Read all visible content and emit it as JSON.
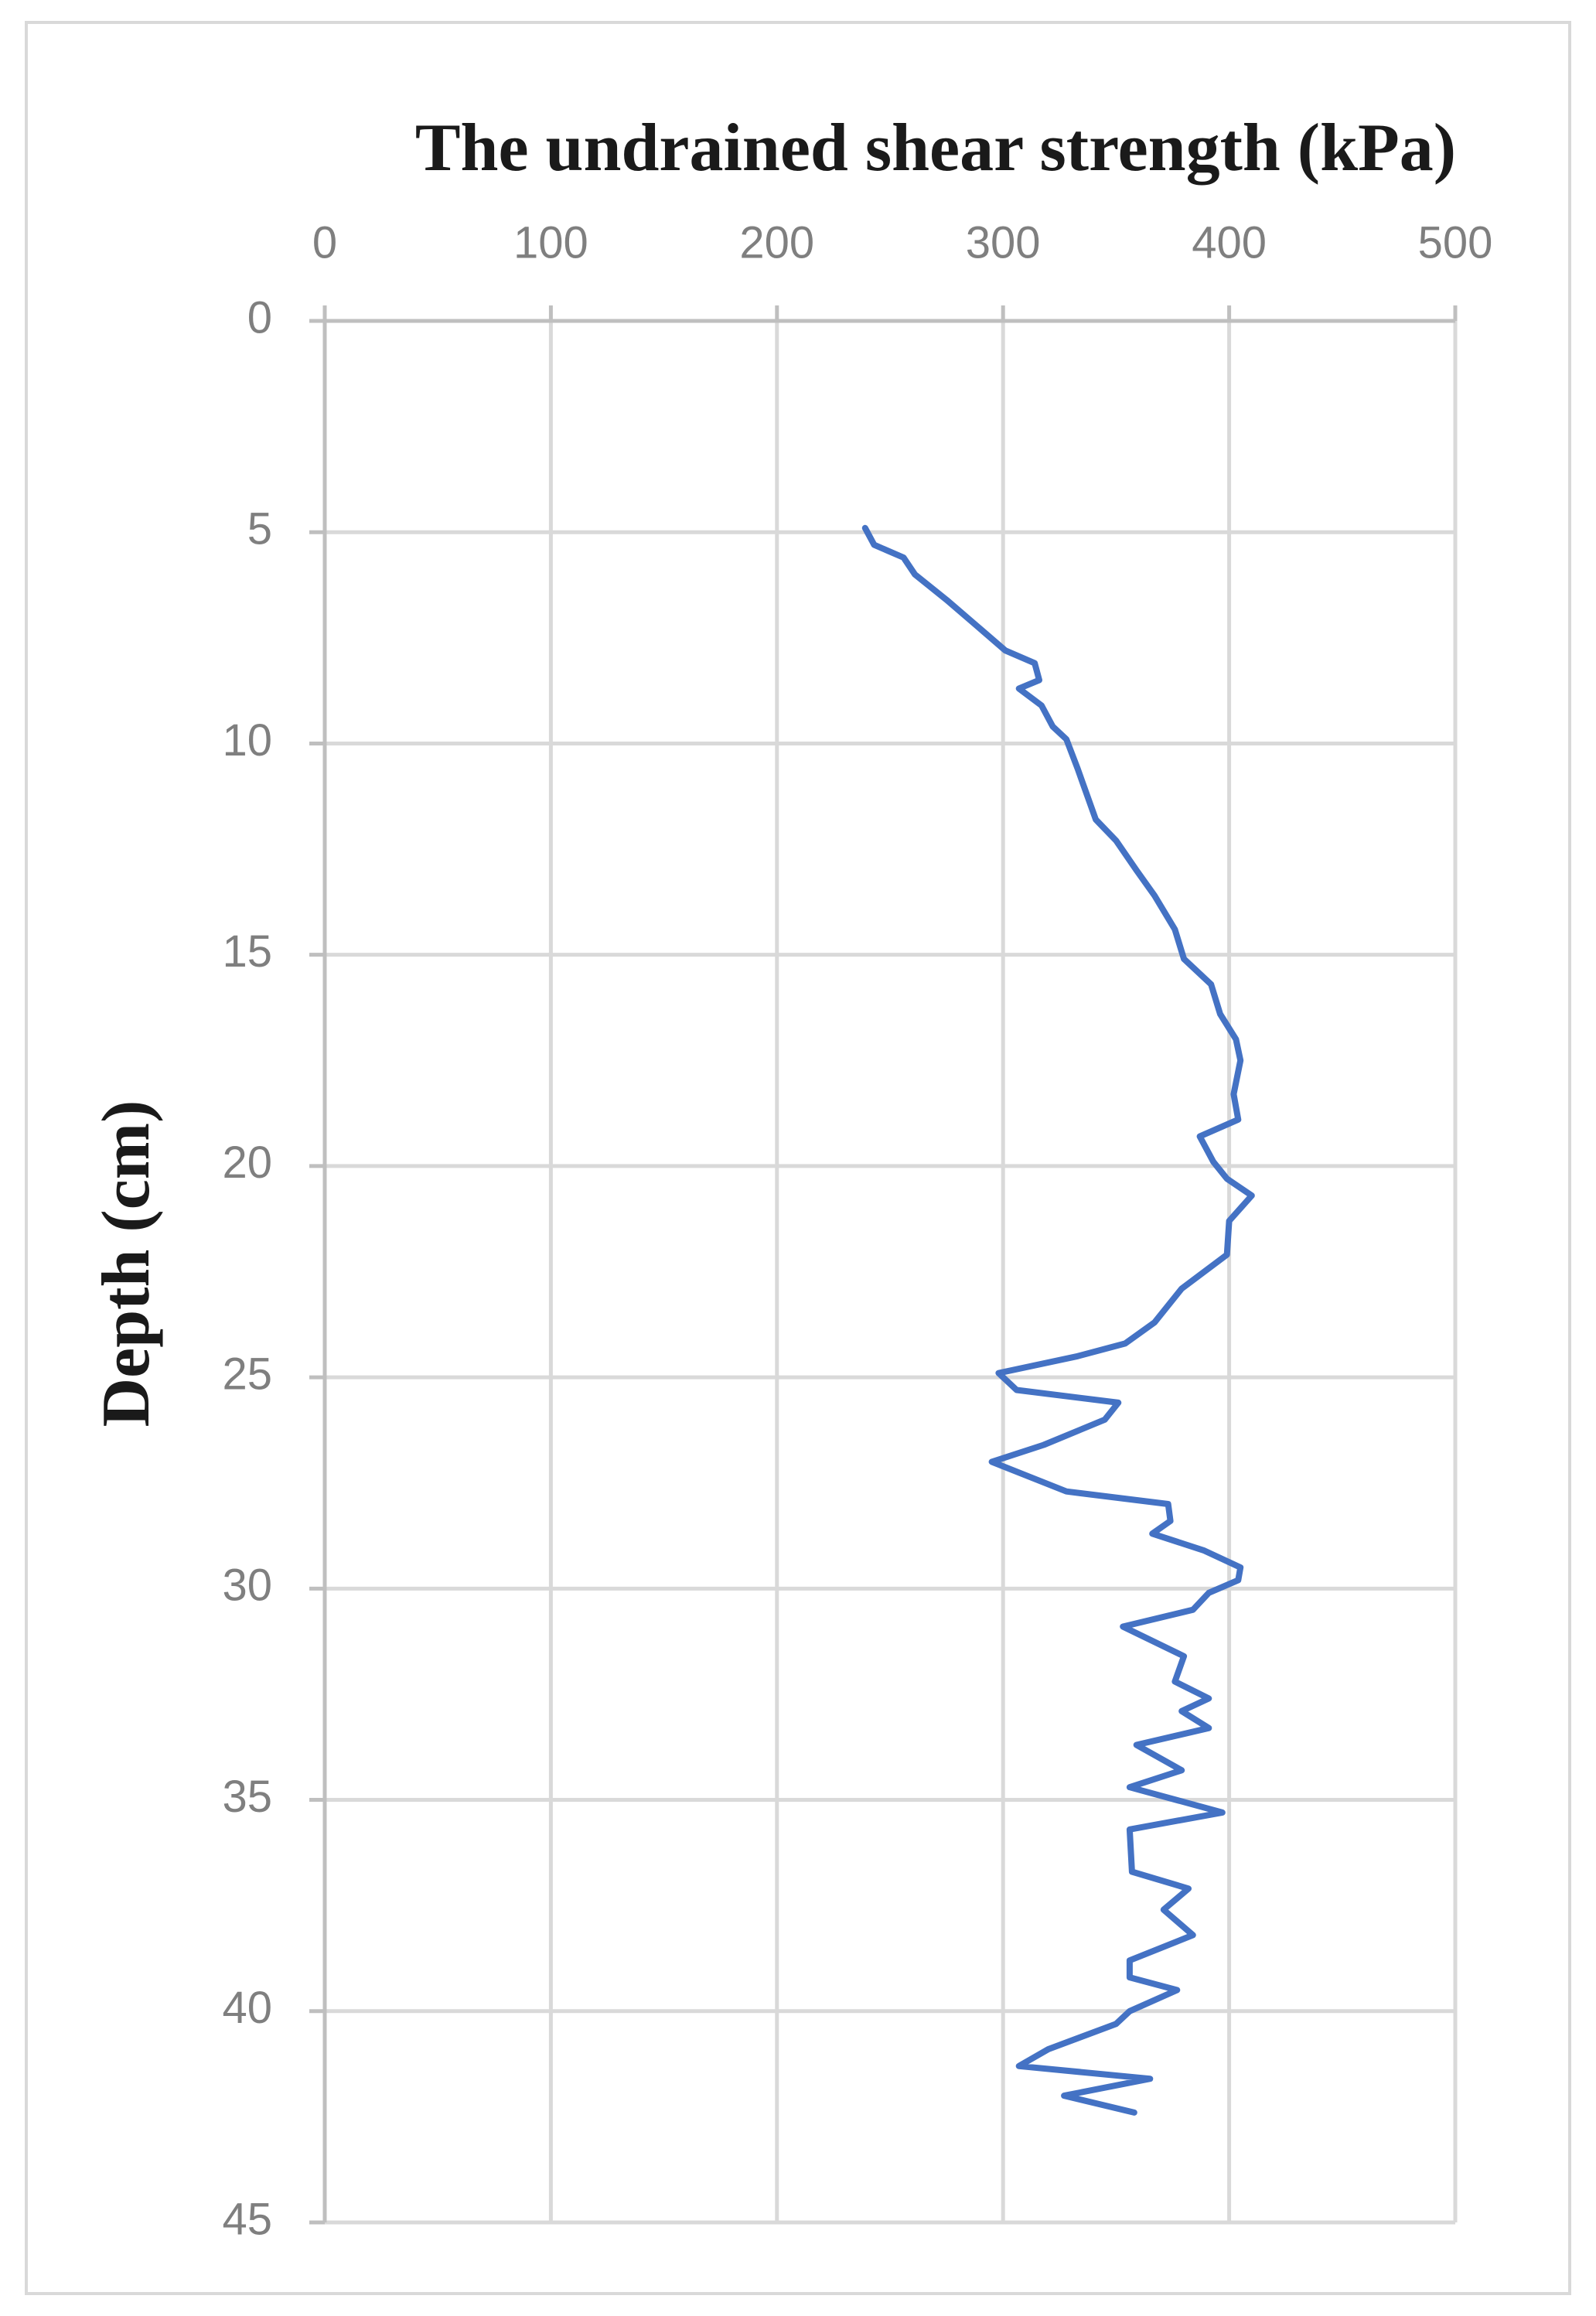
{
  "chart_data": {
    "type": "line",
    "title": "The undrained shear strength (kPa)",
    "y_label": "Depth (cm)",
    "color": "#4472c4",
    "grid": true,
    "x_axis_position": "top",
    "y_reversed": true,
    "xlim": [
      0,
      500
    ],
    "xticks": [
      0,
      100,
      200,
      300,
      400,
      500
    ],
    "ylim": [
      0,
      45
    ],
    "yticks": [
      0,
      5,
      10,
      15,
      20,
      25,
      30,
      35,
      40,
      45
    ],
    "values": [
      239,
      243,
      256,
      261,
      275,
      288,
      301,
      314,
      316,
      307,
      317,
      322,
      328,
      333,
      335,
      341,
      350,
      359,
      367,
      376,
      380,
      392,
      396,
      403,
      405,
      402,
      404,
      387,
      393,
      399,
      410,
      400,
      399,
      379,
      367,
      354,
      333,
      298,
      306,
      351,
      345,
      318,
      295,
      328,
      373,
      374,
      366,
      389,
      405,
      404,
      391,
      384,
      353,
      380,
      376,
      391,
      379,
      391,
      359,
      379,
      356,
      397,
      356,
      357,
      382,
      371,
      384,
      356,
      356,
      377,
      356,
      350,
      320,
      307,
      365,
      327,
      358
    ],
    "y": [
      4.9,
      5.3,
      5.6,
      6.0,
      6.6,
      7.2,
      7.8,
      8.1,
      8.5,
      8.7,
      9.1,
      9.6,
      9.9,
      10.6,
      10.9,
      11.8,
      12.3,
      13.0,
      13.6,
      14.4,
      15.1,
      15.7,
      16.4,
      17.0,
      17.5,
      18.3,
      18.9,
      19.3,
      19.9,
      20.3,
      20.7,
      21.3,
      22.1,
      22.9,
      23.7,
      24.2,
      24.5,
      24.9,
      25.3,
      25.6,
      26.0,
      26.6,
      27.0,
      27.7,
      28.0,
      28.4,
      28.7,
      29.1,
      29.5,
      29.8,
      30.1,
      30.5,
      30.9,
      31.6,
      32.2,
      32.6,
      32.9,
      33.3,
      33.7,
      34.3,
      34.7,
      35.3,
      35.7,
      36.7,
      37.1,
      37.6,
      38.2,
      38.8,
      39.2,
      39.5,
      40.0,
      40.3,
      40.9,
      41.3,
      41.6,
      42.0,
      42.4
    ]
  }
}
